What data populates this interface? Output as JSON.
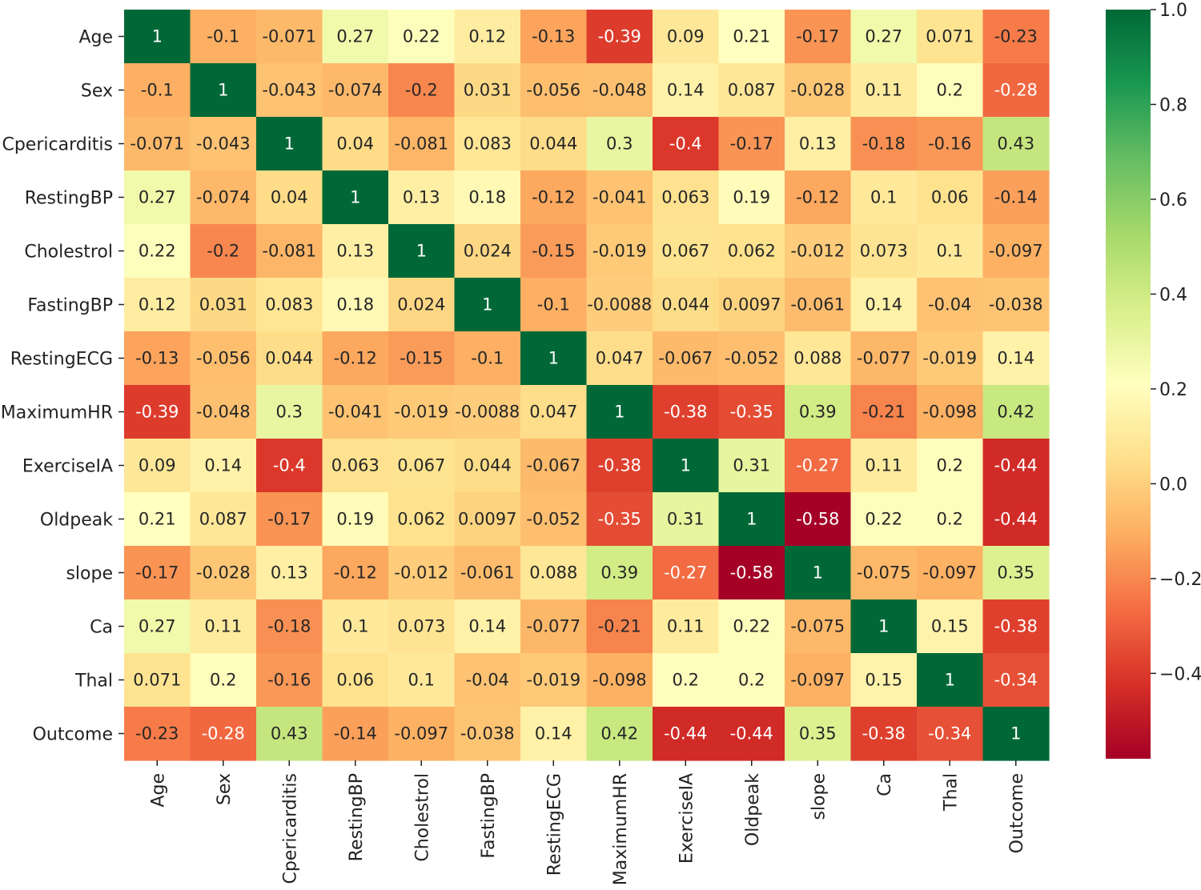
{
  "chart_data": {
    "type": "heatmap",
    "title": "",
    "variables": [
      "Age",
      "Sex",
      "Cpericarditis",
      "RestingBP",
      "Cholestrol",
      "FastingBP",
      "RestingECG",
      "MaximumHR",
      "ExerciseIA",
      "Oldpeak",
      "slope",
      "Ca",
      "Thal",
      "Outcome"
    ],
    "cell_labels": [
      [
        "1",
        "-0.1",
        "-0.071",
        "0.27",
        "0.22",
        "0.12",
        "-0.13",
        "-0.39",
        "0.09",
        "0.21",
        "-0.17",
        "0.27",
        "0.071",
        "-0.23"
      ],
      [
        "-0.1",
        "1",
        "-0.043",
        "-0.074",
        "-0.2",
        "0.031",
        "-0.056",
        "-0.048",
        "0.14",
        "0.087",
        "-0.028",
        "0.11",
        "0.2",
        "-0.28"
      ],
      [
        "-0.071",
        "-0.043",
        "1",
        "0.04",
        "-0.081",
        "0.083",
        "0.044",
        "0.3",
        "-0.4",
        "-0.17",
        "0.13",
        "-0.18",
        "-0.16",
        "0.43"
      ],
      [
        "0.27",
        "-0.074",
        "0.04",
        "1",
        "0.13",
        "0.18",
        "-0.12",
        "-0.041",
        "0.063",
        "0.19",
        "-0.12",
        "0.1",
        "0.06",
        "-0.14"
      ],
      [
        "0.22",
        "-0.2",
        "-0.081",
        "0.13",
        "1",
        "0.024",
        "-0.15",
        "-0.019",
        "0.067",
        "0.062",
        "-0.012",
        "0.073",
        "0.1",
        "-0.097"
      ],
      [
        "0.12",
        "0.031",
        "0.083",
        "0.18",
        "0.024",
        "1",
        "-0.1",
        "-0.0088",
        "0.044",
        "0.0097",
        "-0.061",
        "0.14",
        "-0.04",
        "-0.038"
      ],
      [
        "-0.13",
        "-0.056",
        "0.044",
        "-0.12",
        "-0.15",
        "-0.1",
        "1",
        "0.047",
        "-0.067",
        "-0.052",
        "0.088",
        "-0.077",
        "-0.019",
        "0.14"
      ],
      [
        "-0.39",
        "-0.048",
        "0.3",
        "-0.041",
        "-0.019",
        "-0.0088",
        "0.047",
        "1",
        "-0.38",
        "-0.35",
        "0.39",
        "-0.21",
        "-0.098",
        "0.42"
      ],
      [
        "0.09",
        "0.14",
        "-0.4",
        "0.063",
        "0.067",
        "0.044",
        "-0.067",
        "-0.38",
        "1",
        "0.31",
        "-0.27",
        "0.11",
        "0.2",
        "-0.44"
      ],
      [
        "0.21",
        "0.087",
        "-0.17",
        "0.19",
        "0.062",
        "0.0097",
        "-0.052",
        "-0.35",
        "0.31",
        "1",
        "-0.58",
        "0.22",
        "0.2",
        "-0.44"
      ],
      [
        "-0.17",
        "-0.028",
        "0.13",
        "-0.12",
        "-0.012",
        "-0.061",
        "0.088",
        "0.39",
        "-0.27",
        "-0.58",
        "1",
        "-0.075",
        "-0.097",
        "0.35"
      ],
      [
        "0.27",
        "0.11",
        "-0.18",
        "0.1",
        "0.073",
        "0.14",
        "-0.077",
        "-0.21",
        "0.11",
        "0.22",
        "-0.075",
        "1",
        "0.15",
        "-0.38"
      ],
      [
        "0.071",
        "0.2",
        "-0.16",
        "0.06",
        "0.1",
        "-0.04",
        "-0.019",
        "-0.098",
        "0.2",
        "0.2",
        "-0.097",
        "0.15",
        "1",
        "-0.34"
      ],
      [
        "-0.23",
        "-0.28",
        "0.43",
        "-0.14",
        "-0.097",
        "-0.038",
        "0.14",
        "0.42",
        "-0.44",
        "-0.44",
        "0.35",
        "-0.38",
        "-0.34",
        "1"
      ]
    ],
    "colormap": "RdYlGn",
    "colorbar": {
      "vmin": -0.58,
      "vmax": 1.0,
      "ticks": [
        1.0,
        0.8,
        0.6,
        0.4,
        0.2,
        0.0,
        -0.2,
        -0.4
      ],
      "tick_labels": [
        "1.0",
        "0.8",
        "0.6",
        "0.4",
        "0.2",
        "0.0",
        "−0.2",
        "−0.4"
      ]
    },
    "xlabel": "",
    "ylabel": ""
  }
}
